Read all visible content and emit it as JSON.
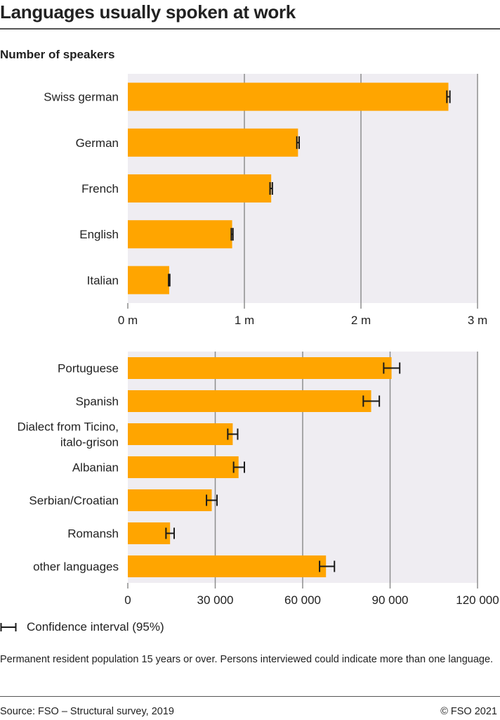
{
  "title": "Languages usually spoken at work",
  "subtitle": "Number of speakers",
  "legend_label": "Confidence interval (95%)",
  "note": "Permanent resident population 15 years or over. Persons interviewed could indicate more than one language.",
  "source": "Source: FSO – Structural survey, 2019",
  "copyright": "© FSO 2021",
  "colors": {
    "bar": "#FFA500",
    "plot_bg": "#EFEDF2",
    "grid": "#8E8E8E",
    "error": "#1A1A1A"
  },
  "chart_data": [
    {
      "type": "bar",
      "orientation": "horizontal",
      "categories": [
        "Swiss german",
        "German",
        "French",
        "English",
        "Italian"
      ],
      "values": [
        2750000,
        1460000,
        1230000,
        895000,
        355000
      ],
      "ci": [
        [
          2737000,
          2763000
        ],
        [
          1450000,
          1470000
        ],
        [
          1220000,
          1240000
        ],
        [
          888000,
          902000
        ],
        [
          350000,
          360000
        ]
      ],
      "xlim": [
        0,
        3000000
      ],
      "ticks": [
        0,
        1000000,
        2000000,
        3000000
      ],
      "tick_labels": [
        "0 m",
        "1 m",
        "2 m",
        "3 m"
      ],
      "grid": true
    },
    {
      "type": "bar",
      "orientation": "horizontal",
      "categories": [
        "Portuguese",
        "Spanish",
        [
          "Dialect from Ticino,",
          "italo-grison"
        ],
        "Albanian",
        "Serbian/Croatian",
        "Romansh",
        "other languages"
      ],
      "values": [
        90500,
        83500,
        36000,
        38000,
        28800,
        14500,
        68000
      ],
      "ci": [
        [
          87800,
          93300
        ],
        [
          80800,
          86300
        ],
        [
          34300,
          37700
        ],
        [
          36300,
          40000
        ],
        [
          27000,
          30600
        ],
        [
          13100,
          15900
        ],
        [
          65800,
          70900
        ]
      ],
      "xlim": [
        0,
        120000
      ],
      "ticks": [
        0,
        30000,
        60000,
        90000,
        120000
      ],
      "tick_labels": [
        "0",
        "30 000",
        "60 000",
        "90 000",
        "120 000"
      ],
      "grid": true
    }
  ]
}
